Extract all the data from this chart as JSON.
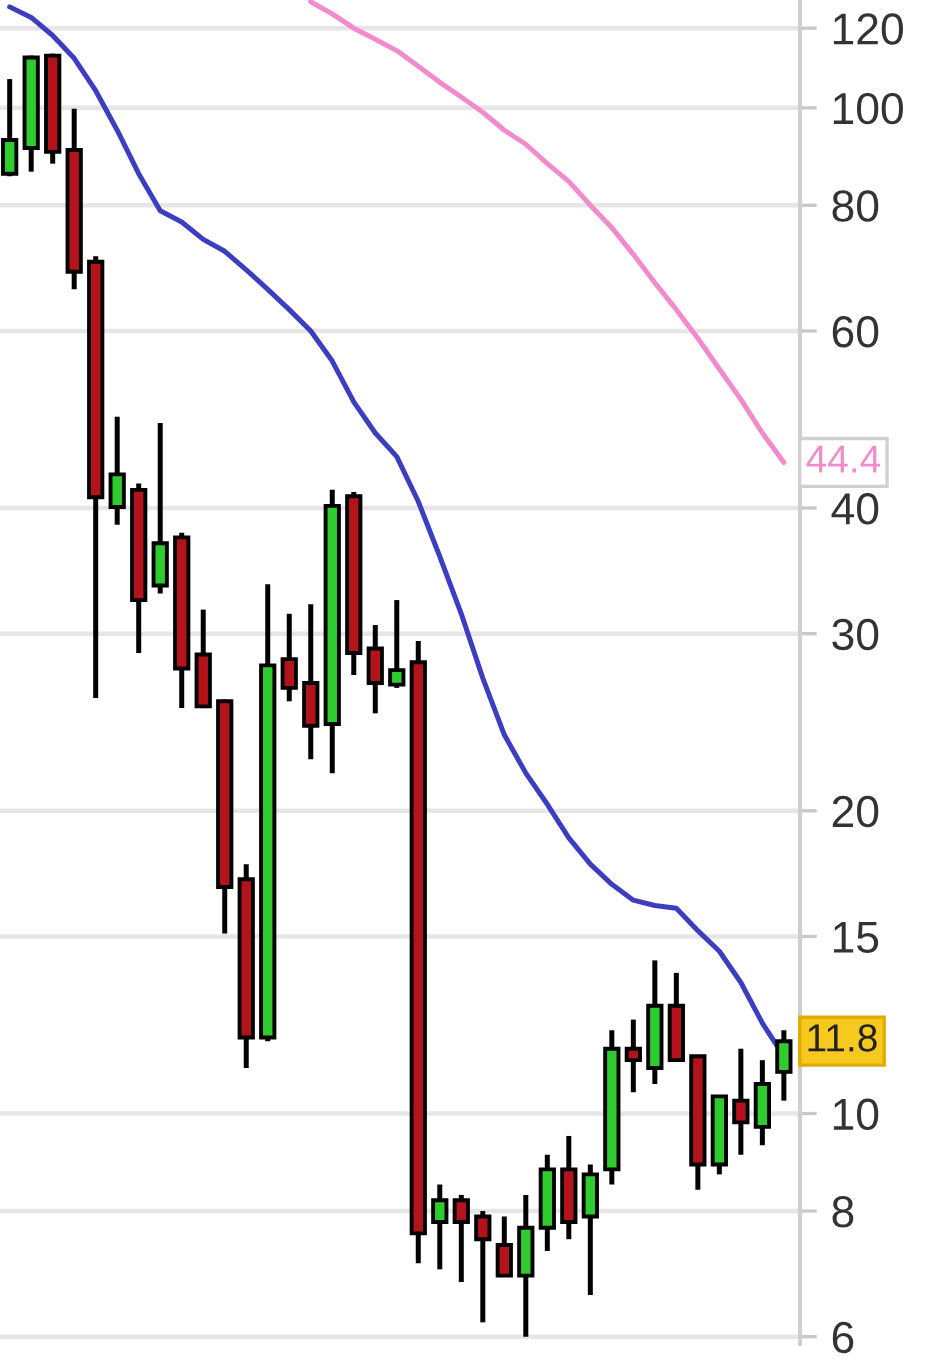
{
  "chart_data": {
    "type": "candlestick",
    "categories": [
      null,
      null,
      null,
      null,
      null,
      null,
      null,
      null,
      null,
      null,
      null,
      null,
      null,
      null,
      null,
      null,
      null,
      null,
      null,
      null,
      null,
      null,
      null,
      null,
      null,
      null,
      null,
      null,
      null,
      null,
      null,
      null,
      null,
      null,
      null,
      null,
      null
    ],
    "series": [
      {
        "type": "line",
        "color": "#3d3dc0",
        "values": [
          126,
          123,
          118,
          112,
          104,
          95,
          86,
          79,
          77,
          74,
          72,
          69,
          66,
          63,
          60,
          56,
          51,
          47.5,
          45,
          40.6,
          35.8,
          31.4,
          27.1,
          23.8,
          21.8,
          20.3,
          18.8,
          17.7,
          16.9,
          16.3,
          16.1,
          16.0,
          15.2,
          14.5,
          13.5,
          12.3,
          11.4
        ]
      },
      {
        "type": "line",
        "color": "#f08ccb",
        "values": [
          null,
          null,
          null,
          null,
          null,
          null,
          null,
          null,
          null,
          null,
          null,
          null,
          null,
          null,
          127.5,
          124,
          120,
          117,
          114,
          110,
          106,
          102.5,
          99,
          95,
          92,
          88,
          84.5,
          80,
          76,
          71.5,
          67,
          63,
          59,
          55,
          51.3,
          47.5,
          44.4
        ],
        "value_labels": [
          null,
          null,
          null,
          null,
          null,
          null,
          null,
          null,
          null,
          null,
          null,
          null,
          null,
          null,
          null,
          null,
          null,
          null,
          null,
          null,
          null,
          null,
          null,
          null,
          null,
          null,
          null,
          null,
          null,
          null,
          null,
          null,
          null,
          null,
          null,
          null,
          "44.4"
        ]
      },
      {
        "ohlc": [
          [
            86.0,
            106.8,
            85.5,
            92.9
          ],
          [
            91.2,
            112.7,
            86.4,
            112.2
          ],
          [
            112.7,
            113.2,
            88.0,
            90.4
          ],
          [
            90.8,
            99.8,
            66.0,
            68.7
          ],
          [
            70.3,
            71.2,
            25.9,
            41.0
          ],
          [
            40.1,
            49.3,
            38.5,
            43.2
          ],
          [
            41.7,
            42.3,
            28.7,
            32.4
          ],
          [
            33.5,
            48.6,
            32.9,
            36.9
          ],
          [
            37.4,
            37.8,
            25.3,
            27.7
          ],
          [
            28.6,
            31.7,
            25.3,
            25.4
          ],
          [
            25.7,
            25.8,
            15.1,
            16.8
          ],
          [
            17.1,
            17.7,
            11.1,
            11.9
          ],
          [
            11.9,
            33.6,
            11.8,
            27.9
          ],
          [
            28.3,
            31.4,
            25.7,
            26.5
          ],
          [
            26.8,
            32.1,
            22.5,
            24.3
          ],
          [
            24.4,
            41.7,
            21.8,
            40.2
          ],
          [
            41.1,
            41.5,
            27.3,
            28.7
          ],
          [
            29.0,
            30.6,
            25.0,
            26.8
          ],
          [
            26.7,
            32.4,
            26.5,
            27.6
          ],
          [
            28.1,
            29.5,
            7.1,
            7.6
          ],
          [
            7.8,
            8.5,
            7.0,
            8.2
          ],
          [
            8.2,
            8.3,
            6.8,
            7.8
          ],
          [
            7.9,
            8.0,
            6.2,
            7.5
          ],
          [
            7.4,
            7.9,
            6.9,
            6.9
          ],
          [
            6.9,
            8.3,
            6.0,
            7.7
          ],
          [
            7.7,
            9.1,
            7.3,
            8.8
          ],
          [
            8.8,
            9.5,
            7.5,
            7.8
          ],
          [
            7.9,
            8.9,
            6.6,
            8.7
          ],
          [
            8.8,
            12.1,
            8.5,
            11.6
          ],
          [
            11.6,
            12.4,
            10.5,
            11.3
          ],
          [
            11.1,
            14.2,
            10.7,
            12.8
          ],
          [
            12.8,
            13.8,
            11.3,
            11.3
          ],
          [
            11.4,
            11.4,
            8.4,
            8.9
          ],
          [
            8.9,
            10.4,
            8.7,
            10.4
          ],
          [
            10.3,
            11.6,
            9.1,
            9.8
          ],
          [
            9.7,
            11.3,
            9.3,
            10.7
          ],
          [
            11.0,
            12.1,
            10.3,
            11.8
          ]
        ],
        "colors": [
          "#2ecc2e",
          "#2ecc2e",
          "#b3141c",
          "#b3141c",
          "#b3141c",
          "#2ecc2e",
          "#b3141c",
          "#2ecc2e",
          "#b3141c",
          "#b3141c",
          "#b3141c",
          "#b3141c",
          "#2ecc2e",
          "#b3141c",
          "#b3141c",
          "#2ecc2e",
          "#b3141c",
          "#b3141c",
          "#2ecc2e",
          "#b3141c",
          "#2ecc2e",
          "#b3141c",
          "#b3141c",
          "#b3141c",
          "#2ecc2e",
          "#2ecc2e",
          "#b3141c",
          "#2ecc2e",
          "#2ecc2e",
          "#b3141c",
          "#2ecc2e",
          "#b3141c",
          "#b3141c",
          "#2ecc2e",
          "#b3141c",
          "#2ecc2e",
          "#2ecc2e"
        ],
        "value_labels": [
          null,
          null,
          null,
          null,
          null,
          null,
          null,
          null,
          null,
          null,
          null,
          null,
          null,
          null,
          null,
          null,
          null,
          null,
          null,
          null,
          null,
          null,
          null,
          null,
          null,
          null,
          null,
          null,
          null,
          null,
          null,
          null,
          null,
          null,
          null,
          null,
          "11.8"
        ]
      }
    ],
    "log": true,
    "ylim": [
      5.9,
      128
    ],
    "yticks": [
      6,
      8,
      10,
      15,
      20,
      30,
      40,
      60,
      80,
      100,
      120
    ],
    "grid": "y",
    "tick_labels": "y"
  }
}
